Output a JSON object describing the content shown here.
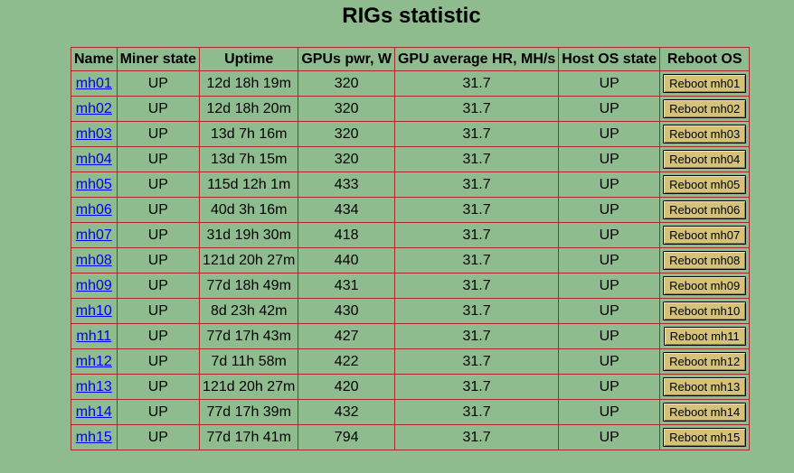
{
  "page": {
    "title": "RIGs statistic"
  },
  "table": {
    "headers": [
      "Name",
      "Miner state",
      "Uptime",
      "GPUs pwr, W",
      "GPU average HR, MH/s",
      "Host OS state",
      "Reboot OS"
    ],
    "rows": [
      {
        "name": "mh01",
        "miner_state": "UP",
        "uptime": "12d 18h 19m",
        "gpus_pwr": "320",
        "avg_hr": "31.7",
        "host_os_state": "UP",
        "reboot_label": "Reboot mh01"
      },
      {
        "name": "mh02",
        "miner_state": "UP",
        "uptime": "12d 18h 20m",
        "gpus_pwr": "320",
        "avg_hr": "31.7",
        "host_os_state": "UP",
        "reboot_label": "Reboot mh02"
      },
      {
        "name": "mh03",
        "miner_state": "UP",
        "uptime": "13d 7h 16m",
        "gpus_pwr": "320",
        "avg_hr": "31.7",
        "host_os_state": "UP",
        "reboot_label": "Reboot mh03"
      },
      {
        "name": "mh04",
        "miner_state": "UP",
        "uptime": "13d 7h 15m",
        "gpus_pwr": "320",
        "avg_hr": "31.7",
        "host_os_state": "UP",
        "reboot_label": "Reboot mh04"
      },
      {
        "name": "mh05",
        "miner_state": "UP",
        "uptime": "115d 12h 1m",
        "gpus_pwr": "433",
        "avg_hr": "31.7",
        "host_os_state": "UP",
        "reboot_label": "Reboot mh05"
      },
      {
        "name": "mh06",
        "miner_state": "UP",
        "uptime": "40d 3h 16m",
        "gpus_pwr": "434",
        "avg_hr": "31.7",
        "host_os_state": "UP",
        "reboot_label": "Reboot mh06"
      },
      {
        "name": "mh07",
        "miner_state": "UP",
        "uptime": "31d 19h 30m",
        "gpus_pwr": "418",
        "avg_hr": "31.7",
        "host_os_state": "UP",
        "reboot_label": "Reboot mh07"
      },
      {
        "name": "mh08",
        "miner_state": "UP",
        "uptime": "121d 20h 27m",
        "gpus_pwr": "440",
        "avg_hr": "31.7",
        "host_os_state": "UP",
        "reboot_label": "Reboot mh08"
      },
      {
        "name": "mh09",
        "miner_state": "UP",
        "uptime": "77d 18h 49m",
        "gpus_pwr": "431",
        "avg_hr": "31.7",
        "host_os_state": "UP",
        "reboot_label": "Reboot mh09"
      },
      {
        "name": "mh10",
        "miner_state": "UP",
        "uptime": "8d 23h 42m",
        "gpus_pwr": "430",
        "avg_hr": "31.7",
        "host_os_state": "UP",
        "reboot_label": "Reboot mh10"
      },
      {
        "name": "mh11",
        "miner_state": "UP",
        "uptime": "77d 17h 43m",
        "gpus_pwr": "427",
        "avg_hr": "31.7",
        "host_os_state": "UP",
        "reboot_label": "Reboot mh11"
      },
      {
        "name": "mh12",
        "miner_state": "UP",
        "uptime": "7d 11h 58m",
        "gpus_pwr": "422",
        "avg_hr": "31.7",
        "host_os_state": "UP",
        "reboot_label": "Reboot mh12"
      },
      {
        "name": "mh13",
        "miner_state": "UP",
        "uptime": "121d 20h 27m",
        "gpus_pwr": "420",
        "avg_hr": "31.7",
        "host_os_state": "UP",
        "reboot_label": "Reboot mh13"
      },
      {
        "name": "mh14",
        "miner_state": "UP",
        "uptime": "77d 17h 39m",
        "gpus_pwr": "432",
        "avg_hr": "31.7",
        "host_os_state": "UP",
        "reboot_label": "Reboot mh14"
      },
      {
        "name": "mh15",
        "miner_state": "UP",
        "uptime": "77d 17h 41m",
        "gpus_pwr": "794",
        "avg_hr": "31.7",
        "host_os_state": "UP",
        "reboot_label": "Reboot mh15"
      }
    ]
  },
  "colors": {
    "background": "#8fbc8f",
    "border": "#a52a2a",
    "link": "#0000ee",
    "button": "#d4c27a"
  }
}
